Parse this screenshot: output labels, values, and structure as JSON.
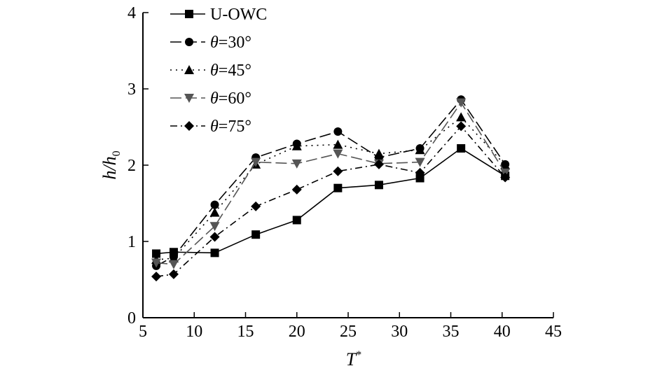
{
  "chart_data": {
    "type": "line",
    "title": "",
    "xlabel": "T",
    "xlabel_sup": "*",
    "ylabel_main": "h/h",
    "ylabel_sub": "0",
    "xlim": [
      5,
      45
    ],
    "ylim": [
      0,
      4
    ],
    "xticks": [
      5,
      10,
      15,
      20,
      25,
      30,
      35,
      40,
      45
    ],
    "yticks": [
      0,
      1,
      2,
      3,
      4
    ],
    "grid": false,
    "legend_position": "top-left",
    "series": [
      {
        "name": "U-OWC",
        "marker": "square",
        "color": "#000000",
        "dash": "solid",
        "x": [
          6.3,
          8,
          12,
          16,
          20,
          24,
          28,
          32,
          36,
          40.3
        ],
        "y": [
          0.84,
          0.86,
          0.85,
          1.09,
          1.28,
          1.7,
          1.74,
          1.83,
          2.22,
          1.86
        ]
      },
      {
        "name": "θ=30°",
        "marker": "circle",
        "color": "#000000",
        "dash": "long-dash",
        "x": [
          6.3,
          8,
          12,
          16,
          20,
          24,
          28,
          32,
          36,
          40.3
        ],
        "y": [
          0.68,
          0.8,
          1.48,
          2.1,
          2.28,
          2.44,
          2.1,
          2.22,
          2.86,
          2.01
        ]
      },
      {
        "name": "θ=45°",
        "marker": "triangle-up",
        "color": "#000000",
        "dash": "dot",
        "x": [
          6.3,
          8,
          12,
          16,
          20,
          24,
          28,
          32,
          36,
          40.3
        ],
        "y": [
          0.76,
          0.78,
          1.38,
          2.01,
          2.25,
          2.27,
          2.15,
          2.2,
          2.63,
          2.0
        ]
      },
      {
        "name": "θ=60°",
        "marker": "triangle-down",
        "color": "#555555",
        "dash": "long-dash",
        "x": [
          6.3,
          8,
          12,
          16,
          20,
          24,
          28,
          32,
          36,
          40.3
        ],
        "y": [
          0.72,
          0.7,
          1.2,
          2.04,
          2.02,
          2.15,
          2.02,
          2.04,
          2.82,
          1.9
        ]
      },
      {
        "name": "θ=75°",
        "marker": "diamond",
        "color": "#000000",
        "dash": "dash-dot",
        "x": [
          6.3,
          8,
          12,
          16,
          20,
          24,
          28,
          32,
          36,
          40.3
        ],
        "y": [
          0.54,
          0.57,
          1.06,
          1.46,
          1.68,
          1.92,
          2.01,
          1.9,
          2.51,
          1.84
        ]
      }
    ]
  }
}
